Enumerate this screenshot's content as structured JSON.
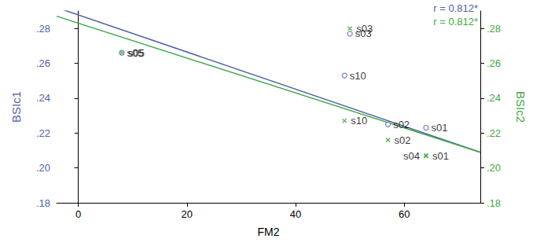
{
  "chart_data": {
    "type": "scatter",
    "xlabel": "FM2",
    "xlim": [
      -4,
      74
    ],
    "xticks": [
      0,
      20,
      40,
      60
    ],
    "ylim": [
      0.18,
      0.29
    ],
    "yticks": [
      {
        "value": 0.18,
        "label": ".18"
      },
      {
        "value": 0.2,
        "label": ".20"
      },
      {
        "value": 0.22,
        "label": ".22"
      },
      {
        "value": 0.24,
        "label": ".24"
      },
      {
        "value": 0.26,
        "label": ".26"
      },
      {
        "value": 0.28,
        "label": ".28"
      }
    ],
    "y2lim": [
      0.18,
      0.29
    ],
    "y2ticks": [
      {
        "value": 0.18,
        "label": ".18"
      },
      {
        "value": 0.2,
        "label": ".20"
      },
      {
        "value": 0.22,
        "label": ".22"
      },
      {
        "value": 0.24,
        "label": ".24"
      },
      {
        "value": 0.26,
        "label": ".26"
      },
      {
        "value": 0.28,
        "label": ".28"
      }
    ],
    "grid": false,
    "series": [
      {
        "name": "BSIc1",
        "color": "#4f62a8",
        "marker": "circle",
        "x": [
          8,
          50,
          49,
          57,
          64
        ],
        "values": [
          0.266,
          0.277,
          0.253,
          0.225,
          0.223
        ],
        "point_labels": [
          "s05",
          "s03",
          "s10",
          "s02",
          "s01"
        ],
        "fit_x": [
          -4,
          74
        ],
        "fit_values": [
          0.292,
          0.209
        ],
        "annotation": "r = 0.812*"
      },
      {
        "name": "BSIc2",
        "color": "#3fa845",
        "marker": "x",
        "axis": "y2",
        "x": [
          8,
          50,
          49,
          57,
          64,
          64
        ],
        "values": [
          0.266,
          0.28,
          0.227,
          0.216,
          0.207,
          0.207
        ],
        "point_labels": [
          "s05",
          "s03",
          "s10",
          "s02",
          "s04",
          "s01"
        ],
        "fit_x": [
          -4,
          74
        ],
        "fit_values": [
          0.287,
          0.209
        ],
        "annotation": "r = 0.812*"
      }
    ]
  }
}
